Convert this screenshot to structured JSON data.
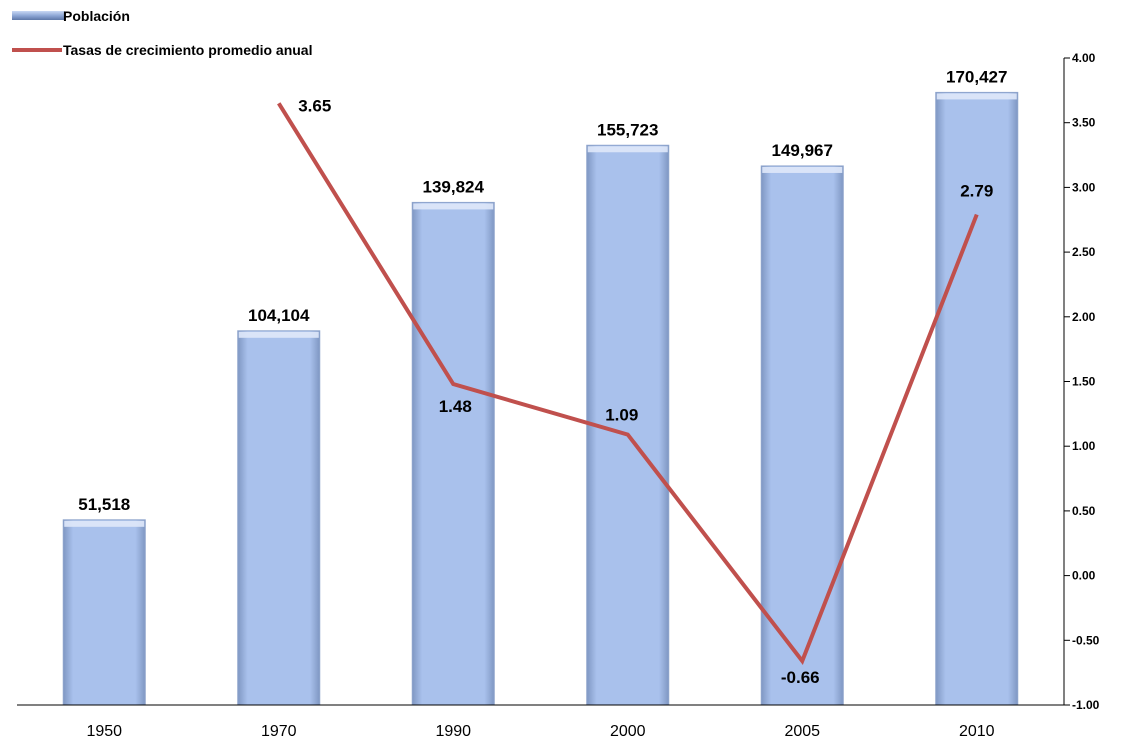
{
  "chart_data": {
    "type": "bar",
    "categories": [
      "1950",
      "1970",
      "1990",
      "2000",
      "2005",
      "2010"
    ],
    "series": [
      {
        "name": "Población",
        "type": "bar",
        "values": [
          51518,
          104104,
          139824,
          155723,
          149967,
          170427
        ],
        "labels": [
          "51,518",
          "104,104",
          "139,824",
          "155,723",
          "149,967",
          "170,427"
        ],
        "color": "#a9c1ec"
      },
      {
        "name": "Tasas de crecimiento promedio anual",
        "type": "line",
        "axis": "right",
        "values": [
          null,
          3.65,
          1.48,
          1.09,
          -0.66,
          2.79
        ],
        "labels": [
          "",
          "3.65",
          "1.48",
          "1.09",
          "-0.66",
          "2.79"
        ],
        "color": "#c0504d",
        "negative_label_color": "#ff0000"
      }
    ],
    "y_left_range": [
      0,
      180000
    ],
    "y_right_range": [
      -1.0,
      4.0
    ],
    "y_right_ticks": [
      "4.00",
      "3.50",
      "3.00",
      "2.50",
      "2.00",
      "1.50",
      "1.00",
      "0.50",
      "0.00",
      "-0.50",
      "-1.00"
    ],
    "legend_position": "top-left",
    "grid": false
  }
}
